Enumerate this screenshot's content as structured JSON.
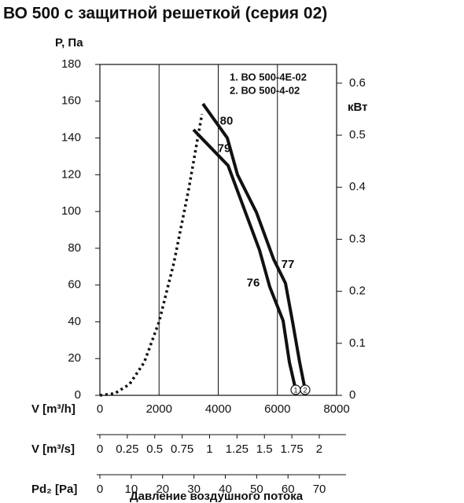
{
  "chart_data": {
    "type": "line",
    "title": "ВО 500 с защитной решеткой (серия 02)",
    "y_label": "P, Па",
    "y2_label": "кВт",
    "x_label": "V [m³/h]",
    "bottom_label": "Давление воздушного потока",
    "xlim": [
      0,
      8000
    ],
    "xticks": [
      0,
      2000,
      4000,
      6000,
      8000
    ],
    "ylim": [
      0,
      180
    ],
    "yticks": [
      0,
      20,
      40,
      60,
      80,
      100,
      120,
      140,
      160,
      180
    ],
    "y2lim": [
      0,
      0.636
    ],
    "y2ticks": [
      0,
      0.1,
      0.2,
      0.3,
      0.4,
      0.5,
      0.6
    ],
    "grid": "x",
    "legend": [
      "1. ВО 500-4Е-02",
      "2. ВО 500-4-02"
    ],
    "series": [
      {
        "end_label": "1",
        "color": "#111111",
        "x": [
          3163,
          4332,
          5395,
          5741,
          6193,
          6405,
          6618
        ],
        "values": [
          144.5,
          125,
          79,
          59,
          40.6,
          18,
          3
        ]
      },
      {
        "end_label": "2",
        "color": "#111111",
        "x": [
          3482,
          4306,
          4651,
          5289,
          5873,
          6272,
          6512,
          6751,
          6937
        ],
        "values": [
          158.6,
          140,
          120,
          99.6,
          74,
          61,
          40,
          18,
          3
        ]
      },
      {
        "style": "dotted",
        "color": "#111111",
        "x": [
          0,
          500,
          1000,
          1500,
          2000,
          2500,
          3000,
          3450
        ],
        "values": [
          0,
          1,
          6,
          18,
          40,
          72,
          112,
          153
        ]
      }
    ],
    "annotations": [
      {
        "text": "80",
        "x": 4279,
        "y": 149
      },
      {
        "text": "79",
        "x": 4199,
        "y": 134
      },
      {
        "text": "77",
        "x": 6352,
        "y": 71
      },
      {
        "text": "76",
        "x": 5183,
        "y": 61
      }
    ],
    "extra_axes": [
      {
        "label": "V [m³/s]",
        "lim": [
          0,
          2.158
        ],
        "ticks": [
          0,
          0.25,
          0.5,
          0.75,
          1,
          1.25,
          1.5,
          1.75,
          2
        ]
      },
      {
        "label": "Pd₂ [Pa]",
        "lim": [
          0,
          75.5
        ],
        "ticks": [
          0,
          10,
          20,
          30,
          40,
          50,
          60,
          70
        ]
      }
    ]
  }
}
